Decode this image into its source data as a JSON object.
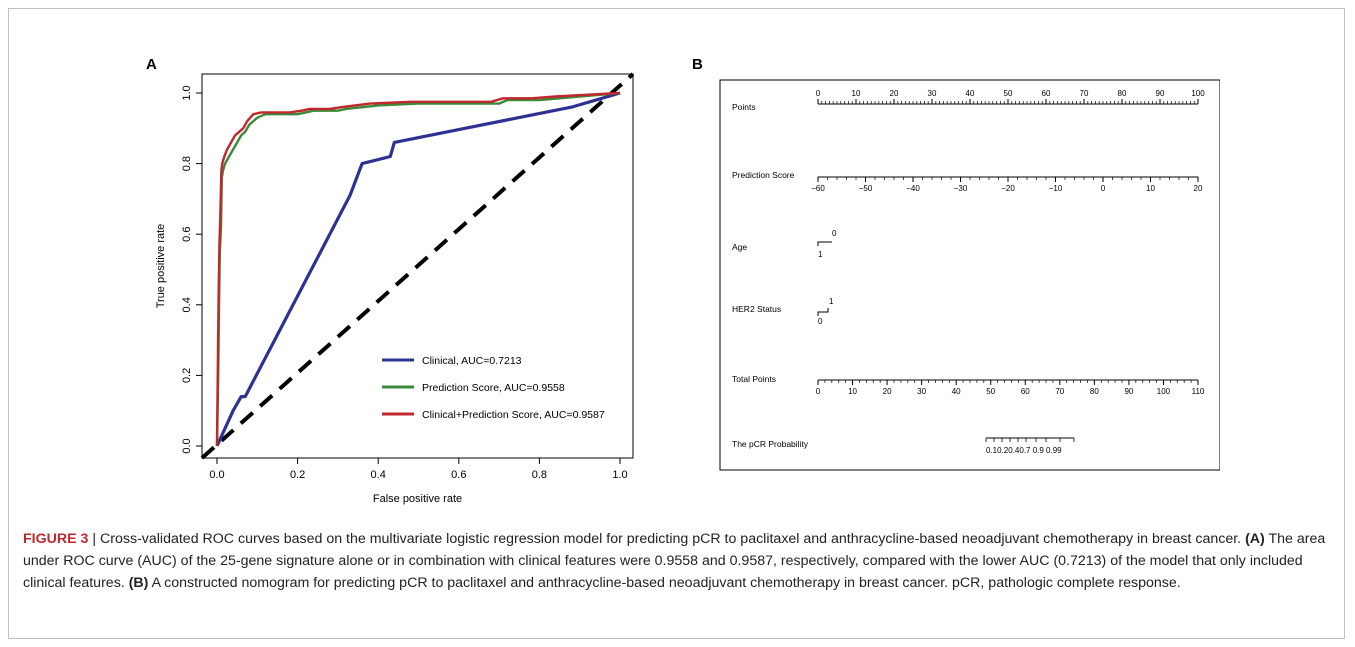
{
  "panel_a": {
    "letter": "A"
  },
  "panel_b": {
    "letter": "B"
  },
  "chart_data": [
    {
      "type": "line",
      "xlabel": "False positive rate",
      "ylabel": "True positive rate",
      "xlim": [
        0,
        1
      ],
      "ylim": [
        0,
        1
      ],
      "xticks": [
        "0.0",
        "0.2",
        "0.4",
        "0.6",
        "0.8",
        "1.0"
      ],
      "yticks": [
        "0.0",
        "0.2",
        "0.4",
        "0.6",
        "0.8",
        "1.0"
      ],
      "grid": false,
      "legend_position": "bottom-right",
      "diagonal": {
        "x": [
          0,
          1
        ],
        "y": [
          0,
          1
        ],
        "style": "dashed",
        "color": "#000000"
      },
      "series": [
        {
          "name": "Clinical, AUC=0.7213",
          "color": "#2e3192",
          "x": [
            0,
            0.04,
            0.06,
            0.07,
            0.33,
            0.36,
            0.43,
            0.44,
            0.88,
            1.0
          ],
          "y": [
            0,
            0.1,
            0.14,
            0.14,
            0.71,
            0.8,
            0.82,
            0.86,
            0.96,
            1.0
          ]
        },
        {
          "name": "Prediction Score, AUC=0.9558",
          "color": "#3a8a3a",
          "x": [
            0,
            0.003,
            0.005,
            0.007,
            0.01,
            0.012,
            0.015,
            0.02,
            0.03,
            0.04,
            0.05,
            0.06,
            0.07,
            0.08,
            0.1,
            0.12,
            0.2,
            0.22,
            0.24,
            0.3,
            0.32,
            0.4,
            0.5,
            0.7,
            0.72,
            0.8,
            0.85,
            1.0
          ],
          "y": [
            0,
            0.2,
            0.4,
            0.55,
            0.62,
            0.76,
            0.78,
            0.8,
            0.82,
            0.84,
            0.86,
            0.88,
            0.89,
            0.91,
            0.93,
            0.94,
            0.94,
            0.945,
            0.95,
            0.95,
            0.955,
            0.965,
            0.97,
            0.97,
            0.98,
            0.98,
            0.985,
            1.0
          ]
        },
        {
          "name": "Clinical+Prediction Score, AUC=0.9587",
          "color": "#c1272d",
          "x": [
            0,
            0.002,
            0.004,
            0.006,
            0.008,
            0.011,
            0.013,
            0.018,
            0.025,
            0.035,
            0.045,
            0.055,
            0.065,
            0.075,
            0.09,
            0.11,
            0.18,
            0.21,
            0.23,
            0.28,
            0.31,
            0.38,
            0.48,
            0.68,
            0.71,
            0.78,
            0.84,
            1.0
          ],
          "y": [
            0,
            0.22,
            0.42,
            0.57,
            0.64,
            0.78,
            0.8,
            0.82,
            0.84,
            0.86,
            0.88,
            0.89,
            0.9,
            0.92,
            0.94,
            0.945,
            0.945,
            0.95,
            0.955,
            0.955,
            0.96,
            0.97,
            0.975,
            0.975,
            0.985,
            0.985,
            0.99,
            1.0
          ]
        }
      ]
    },
    {
      "type": "table",
      "kind": "nomogram",
      "rows": [
        {
          "label": "Points",
          "min": 0,
          "max": 100,
          "ticks": [
            "0",
            "10",
            "20",
            "30",
            "40",
            "50",
            "60",
            "70",
            "80",
            "90",
            "100"
          ]
        },
        {
          "label": "Prediction Score",
          "min": -60,
          "max": 20,
          "ticks": [
            "−60",
            "−50",
            "−40",
            "−30",
            "−20",
            "−10",
            "0",
            "10",
            "20"
          ]
        },
        {
          "label": "Age",
          "ticks": [
            "1",
            "0"
          ]
        },
        {
          "label": "HER2 Status",
          "ticks": [
            "0",
            "1"
          ]
        },
        {
          "label": "Total Points",
          "min": 0,
          "max": 110,
          "ticks": [
            "0",
            "10",
            "20",
            "30",
            "40",
            "50",
            "60",
            "70",
            "80",
            "90",
            "100",
            "110"
          ]
        },
        {
          "label": "The pCR Probability",
          "ticks": [
            "0.1",
            "0.2",
            "0.4",
            "0.7",
            "0.9",
            "0.99"
          ],
          "tick_text": "0.10.20.40.7 0.9    0.99"
        }
      ]
    }
  ],
  "caption": {
    "label": "FIGURE 3",
    "sep": " | ",
    "intro": "Cross-validated ROC curves based on the multivariate logistic regression model for predicting pCR to paclitaxel and anthracycline-based neoadjuvant chemotherapy in breast cancer.",
    "a_tag": "(A)",
    "a_text": "The area under ROC curve (AUC) of the 25-gene signature alone or in combination with clinical features were 0.9558 and 0.9587, respectively, compared with the lower AUC (0.7213) of the model that only included clinical features.",
    "b_tag": "(B)",
    "b_text": "A constructed nomogram for predicting pCR to paclitaxel and anthracycline-based neoadjuvant chemotherapy in breast cancer. pCR, pathologic complete response."
  }
}
